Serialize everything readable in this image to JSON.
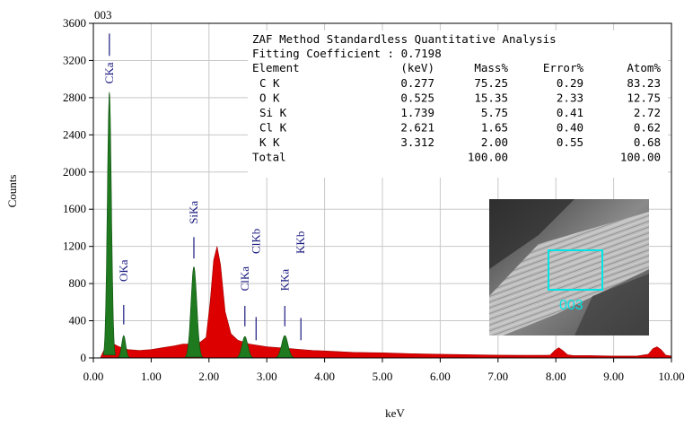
{
  "chart_data": {
    "type": "area",
    "title": "",
    "spectrum_label": "003",
    "xlabel": "keV",
    "ylabel": "Counts",
    "xlim": [
      0,
      10
    ],
    "ylim": [
      0,
      3600
    ],
    "xticks": [
      "0.00",
      "1.00",
      "2.00",
      "3.00",
      "4.00",
      "5.00",
      "6.00",
      "7.00",
      "8.00",
      "9.00",
      "10.00"
    ],
    "yticks": [
      "0",
      "400",
      "800",
      "1200",
      "1600",
      "2000",
      "2400",
      "2800",
      "3200",
      "3600"
    ],
    "grid": true,
    "series": [
      {
        "color": "#dd0000",
        "x": [
          0.12,
          0.18,
          0.22,
          0.35,
          0.45,
          0.6,
          0.8,
          1.0,
          1.2,
          1.4,
          1.55,
          1.65,
          1.85,
          1.95,
          2.02,
          2.08,
          2.14,
          2.2,
          2.28,
          2.38,
          2.5,
          2.7,
          2.9,
          3.0,
          3.2,
          3.4,
          3.6,
          3.8,
          4.0,
          4.5,
          5.0,
          5.5,
          6.0,
          6.5,
          7.0,
          7.5,
          7.9,
          7.98,
          8.05,
          8.12,
          8.2,
          8.3,
          8.6,
          9.0,
          9.4,
          9.6,
          9.68,
          9.75,
          9.82,
          9.9,
          10.0
        ],
        "y": [
          0,
          80,
          130,
          150,
          120,
          90,
          80,
          90,
          110,
          130,
          150,
          150,
          170,
          220,
          600,
          1050,
          1200,
          1000,
          500,
          260,
          190,
          150,
          130,
          120,
          110,
          100,
          90,
          80,
          75,
          60,
          55,
          45,
          40,
          35,
          30,
          28,
          30,
          80,
          110,
          80,
          35,
          25,
          25,
          20,
          20,
          40,
          100,
          120,
          90,
          30,
          20
        ]
      },
      {
        "color": "#1f7a1f",
        "peaks": [
          {
            "x": 0.277,
            "height": 2860,
            "width": 0.035
          },
          {
            "x": 0.525,
            "height": 240,
            "width": 0.035
          },
          {
            "x": 1.739,
            "height": 980,
            "width": 0.05
          },
          {
            "x": 2.621,
            "height": 230,
            "width": 0.05
          },
          {
            "x": 3.312,
            "height": 240,
            "width": 0.055
          }
        ]
      }
    ],
    "annotations": [
      {
        "text": "CKa",
        "x": 0.277,
        "y_label": 2950,
        "marker": [
          3250,
          3490
        ]
      },
      {
        "text": "OKa",
        "x": 0.525,
        "y_label": 820,
        "marker": [
          360,
          570
        ]
      },
      {
        "text": "SiKa",
        "x": 1.739,
        "y_label": 1440,
        "marker": [
          1070,
          1300
        ]
      },
      {
        "text": "ClKa",
        "x": 2.621,
        "y_label": 720,
        "marker": [
          340,
          560
        ]
      },
      {
        "text": "ClKb",
        "x": 2.815,
        "y_label": 1120,
        "marker": [
          190,
          440
        ]
      },
      {
        "text": "KKa",
        "x": 3.312,
        "y_label": 720,
        "marker": [
          340,
          560
        ]
      },
      {
        "text": "KKb",
        "x": 3.59,
        "y_label": 1120,
        "marker": [
          190,
          430
        ]
      }
    ],
    "quant_table": {
      "title": "ZAF Method Standardless Quantitative Analysis",
      "fitting": "Fitting Coefficient : 0.7198",
      "header": [
        "Element",
        "(keV)",
        "Mass%",
        "Error%",
        "Atom%"
      ],
      "rows": [
        [
          "C K",
          "0.277",
          "75.25",
          "0.29",
          "83.23"
        ],
        [
          "O K",
          "0.525",
          "15.35",
          "2.33",
          "12.75"
        ],
        [
          "Si K",
          "1.739",
          "5.75",
          "0.41",
          "2.72"
        ],
        [
          "Cl K",
          "2.621",
          "1.65",
          "0.40",
          "0.62"
        ],
        [
          "K K",
          "3.312",
          "2.00",
          "0.55",
          "0.68"
        ],
        [
          "Total",
          "",
          "100.00",
          "",
          "100.00"
        ]
      ]
    },
    "inset": {
      "label": "003",
      "box_color": "#00e5e5"
    }
  }
}
